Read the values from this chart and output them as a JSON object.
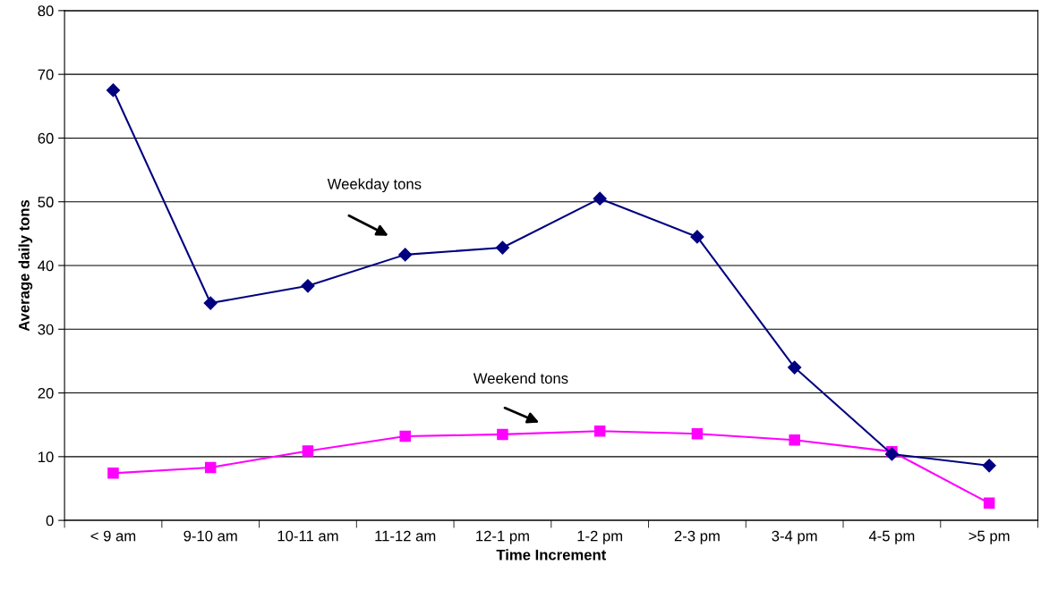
{
  "chart_data": {
    "type": "line",
    "xlabel": "Time Increment",
    "ylabel": "Average daily tons",
    "categories": [
      "< 9 am",
      "9-10 am",
      "10-11 am",
      "11-12 am",
      "12-1 pm",
      "1-2 pm",
      "2-3 pm",
      "3-4 pm",
      "4-5 pm",
      ">5 pm"
    ],
    "series": [
      {
        "color": "#000080",
        "marker": "diamond",
        "values": [
          67.5,
          34.1,
          36.8,
          41.7,
          42.8,
          50.5,
          44.5,
          24.0,
          10.4,
          8.6
        ]
      },
      {
        "color": "#ff00ff",
        "marker": "square",
        "values": [
          7.4,
          8.3,
          10.9,
          13.2,
          13.5,
          14.0,
          13.6,
          12.6,
          10.8,
          2.7
        ]
      }
    ],
    "annotations": [
      "Weekday tons",
      "Weekend tons"
    ],
    "ylim": [
      0,
      80
    ],
    "yticks": [
      0,
      10,
      20,
      30,
      40,
      50,
      60,
      70,
      80
    ],
    "grid": "y",
    "legend": false,
    "line_style": "solid"
  }
}
